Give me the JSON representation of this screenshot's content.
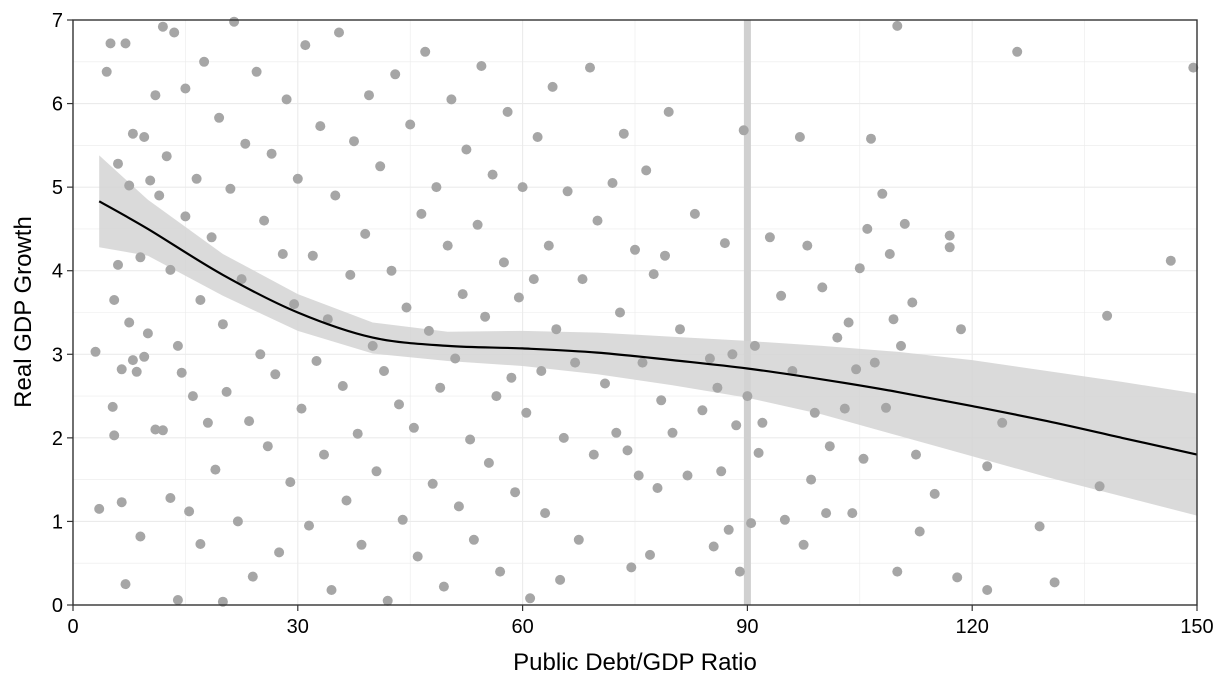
{
  "chart_data": {
    "type": "scatter",
    "title": "",
    "xlabel": "Public Debt/GDP Ratio",
    "ylabel": "Real GDP Growth",
    "xlim": [
      0,
      150
    ],
    "ylim": [
      0,
      7
    ],
    "xticks": [
      0,
      30,
      60,
      90,
      120,
      150
    ],
    "yticks": [
      0,
      1,
      2,
      3,
      4,
      5,
      6,
      7
    ],
    "grid": true,
    "reference_line_x": 90,
    "colors": {
      "points": "#a6a6a6",
      "smooth_line": "#000000",
      "confidence_band": "#d4d4d4",
      "reference_line": "#d0d0d0",
      "grid": "#ebebeb",
      "panel_border": "#333333"
    },
    "smooth": {
      "x": [
        3.5,
        10,
        20,
        30,
        40,
        50,
        60,
        70,
        80,
        90,
        100,
        110,
        120,
        130,
        140,
        150
      ],
      "y": [
        4.83,
        4.5,
        3.95,
        3.5,
        3.2,
        3.1,
        3.07,
        3.02,
        2.93,
        2.83,
        2.7,
        2.55,
        2.38,
        2.2,
        2.0,
        1.8
      ],
      "lower": [
        4.28,
        4.18,
        3.7,
        3.28,
        3.01,
        2.92,
        2.86,
        2.76,
        2.63,
        2.48,
        2.28,
        2.03,
        1.78,
        1.53,
        1.3,
        1.07
      ],
      "upper": [
        5.38,
        4.85,
        4.2,
        3.72,
        3.38,
        3.27,
        3.28,
        3.26,
        3.21,
        3.16,
        3.1,
        3.03,
        2.93,
        2.8,
        2.67,
        2.53
      ]
    },
    "points": [
      {
        "x": 3.0,
        "y": 3.03
      },
      {
        "x": 3.5,
        "y": 1.15
      },
      {
        "x": 4.5,
        "y": 6.38
      },
      {
        "x": 5.0,
        "y": 6.72
      },
      {
        "x": 5.3,
        "y": 2.37
      },
      {
        "x": 5.5,
        "y": 3.65
      },
      {
        "x": 5.5,
        "y": 2.03
      },
      {
        "x": 6.0,
        "y": 5.28
      },
      {
        "x": 6.0,
        "y": 4.07
      },
      {
        "x": 6.5,
        "y": 2.82
      },
      {
        "x": 6.5,
        "y": 1.23
      },
      {
        "x": 7.0,
        "y": 0.25
      },
      {
        "x": 7.0,
        "y": 6.72
      },
      {
        "x": 7.5,
        "y": 5.02
      },
      {
        "x": 7.5,
        "y": 3.38
      },
      {
        "x": 8.0,
        "y": 5.64
      },
      {
        "x": 8.0,
        "y": 2.93
      },
      {
        "x": 8.5,
        "y": 2.79
      },
      {
        "x": 9.0,
        "y": 0.82
      },
      {
        "x": 9.0,
        "y": 4.16
      },
      {
        "x": 9.5,
        "y": 5.6
      },
      {
        "x": 9.5,
        "y": 2.97
      },
      {
        "x": 10.0,
        "y": 3.25
      },
      {
        "x": 10.3,
        "y": 5.08
      },
      {
        "x": 11.0,
        "y": 6.1
      },
      {
        "x": 11.0,
        "y": 2.1
      },
      {
        "x": 11.5,
        "y": 4.9
      },
      {
        "x": 12.0,
        "y": 6.92
      },
      {
        "x": 12.0,
        "y": 2.09
      },
      {
        "x": 12.5,
        "y": 5.37
      },
      {
        "x": 13.0,
        "y": 4.01
      },
      {
        "x": 13.0,
        "y": 1.28
      },
      {
        "x": 13.5,
        "y": 6.85
      },
      {
        "x": 14.0,
        "y": 3.1
      },
      {
        "x": 14.0,
        "y": 0.06
      },
      {
        "x": 14.5,
        "y": 2.78
      },
      {
        "x": 15.0,
        "y": 6.18
      },
      {
        "x": 15.0,
        "y": 4.65
      },
      {
        "x": 15.5,
        "y": 1.12
      },
      {
        "x": 16.0,
        "y": 2.5
      },
      {
        "x": 16.5,
        "y": 5.1
      },
      {
        "x": 17.0,
        "y": 0.73
      },
      {
        "x": 17.0,
        "y": 3.65
      },
      {
        "x": 17.5,
        "y": 6.5
      },
      {
        "x": 18.0,
        "y": 2.18
      },
      {
        "x": 18.5,
        "y": 4.4
      },
      {
        "x": 19.0,
        "y": 1.62
      },
      {
        "x": 19.5,
        "y": 5.83
      },
      {
        "x": 20.0,
        "y": 3.36
      },
      {
        "x": 20.0,
        "y": 0.04
      },
      {
        "x": 20.5,
        "y": 2.55
      },
      {
        "x": 21.0,
        "y": 4.98
      },
      {
        "x": 21.5,
        "y": 6.98
      },
      {
        "x": 22.0,
        "y": 1.0
      },
      {
        "x": 22.5,
        "y": 3.9
      },
      {
        "x": 23.0,
        "y": 5.52
      },
      {
        "x": 23.5,
        "y": 2.2
      },
      {
        "x": 24.0,
        "y": 0.34
      },
      {
        "x": 24.5,
        "y": 6.38
      },
      {
        "x": 25.0,
        "y": 3.0
      },
      {
        "x": 25.5,
        "y": 4.6
      },
      {
        "x": 26.0,
        "y": 1.9
      },
      {
        "x": 26.5,
        "y": 5.4
      },
      {
        "x": 27.0,
        "y": 2.76
      },
      {
        "x": 27.5,
        "y": 0.63
      },
      {
        "x": 28.0,
        "y": 4.2
      },
      {
        "x": 28.5,
        "y": 6.05
      },
      {
        "x": 29.0,
        "y": 1.47
      },
      {
        "x": 29.5,
        "y": 3.6
      },
      {
        "x": 30.0,
        "y": 5.1
      },
      {
        "x": 30.5,
        "y": 2.35
      },
      {
        "x": 31.0,
        "y": 6.7
      },
      {
        "x": 31.5,
        "y": 0.95
      },
      {
        "x": 32.0,
        "y": 4.18
      },
      {
        "x": 32.5,
        "y": 2.92
      },
      {
        "x": 33.0,
        "y": 5.73
      },
      {
        "x": 33.5,
        "y": 1.8
      },
      {
        "x": 34.0,
        "y": 3.42
      },
      {
        "x": 34.5,
        "y": 0.18
      },
      {
        "x": 35.0,
        "y": 4.9
      },
      {
        "x": 35.5,
        "y": 6.85
      },
      {
        "x": 36.0,
        "y": 2.62
      },
      {
        "x": 36.5,
        "y": 1.25
      },
      {
        "x": 37.0,
        "y": 3.95
      },
      {
        "x": 37.5,
        "y": 5.55
      },
      {
        "x": 38.0,
        "y": 2.05
      },
      {
        "x": 38.5,
        "y": 0.72
      },
      {
        "x": 39.0,
        "y": 4.44
      },
      {
        "x": 39.5,
        "y": 6.1
      },
      {
        "x": 40.0,
        "y": 3.1
      },
      {
        "x": 40.5,
        "y": 1.6
      },
      {
        "x": 41.0,
        "y": 5.25
      },
      {
        "x": 41.5,
        "y": 2.8
      },
      {
        "x": 42.0,
        "y": 0.05
      },
      {
        "x": 42.5,
        "y": 4.0
      },
      {
        "x": 43.0,
        "y": 6.35
      },
      {
        "x": 43.5,
        "y": 2.4
      },
      {
        "x": 44.0,
        "y": 1.02
      },
      {
        "x": 44.5,
        "y": 3.56
      },
      {
        "x": 45.0,
        "y": 5.75
      },
      {
        "x": 45.5,
        "y": 2.12
      },
      {
        "x": 46.0,
        "y": 0.58
      },
      {
        "x": 46.5,
        "y": 4.68
      },
      {
        "x": 47.0,
        "y": 6.62
      },
      {
        "x": 47.5,
        "y": 3.28
      },
      {
        "x": 48.0,
        "y": 1.45
      },
      {
        "x": 48.5,
        "y": 5.0
      },
      {
        "x": 49.0,
        "y": 2.6
      },
      {
        "x": 49.5,
        "y": 0.22
      },
      {
        "x": 50.0,
        "y": 4.3
      },
      {
        "x": 50.5,
        "y": 6.05
      },
      {
        "x": 51.0,
        "y": 2.95
      },
      {
        "x": 51.5,
        "y": 1.18
      },
      {
        "x": 52.0,
        "y": 3.72
      },
      {
        "x": 52.5,
        "y": 5.45
      },
      {
        "x": 53.0,
        "y": 1.98
      },
      {
        "x": 53.5,
        "y": 0.78
      },
      {
        "x": 54.0,
        "y": 4.55
      },
      {
        "x": 54.5,
        "y": 6.45
      },
      {
        "x": 55.0,
        "y": 3.45
      },
      {
        "x": 55.5,
        "y": 1.7
      },
      {
        "x": 56.0,
        "y": 5.15
      },
      {
        "x": 56.5,
        "y": 2.5
      },
      {
        "x": 57.0,
        "y": 0.4
      },
      {
        "x": 57.5,
        "y": 4.1
      },
      {
        "x": 58.0,
        "y": 5.9
      },
      {
        "x": 58.5,
        "y": 2.72
      },
      {
        "x": 59.0,
        "y": 1.35
      },
      {
        "x": 59.5,
        "y": 3.68
      },
      {
        "x": 60.0,
        "y": 5.0
      },
      {
        "x": 60.5,
        "y": 2.3
      },
      {
        "x": 61.0,
        "y": 0.08
      },
      {
        "x": 61.5,
        "y": 3.9
      },
      {
        "x": 62.0,
        "y": 5.6
      },
      {
        "x": 62.5,
        "y": 2.8
      },
      {
        "x": 63.0,
        "y": 1.1
      },
      {
        "x": 63.5,
        "y": 4.3
      },
      {
        "x": 64.0,
        "y": 6.2
      },
      {
        "x": 64.5,
        "y": 3.3
      },
      {
        "x": 65.0,
        "y": 0.3
      },
      {
        "x": 65.5,
        "y": 2.0
      },
      {
        "x": 66.0,
        "y": 4.95
      },
      {
        "x": 67.0,
        "y": 2.9
      },
      {
        "x": 67.5,
        "y": 0.78
      },
      {
        "x": 68.0,
        "y": 3.9
      },
      {
        "x": 69.0,
        "y": 6.43
      },
      {
        "x": 69.5,
        "y": 1.8
      },
      {
        "x": 70.0,
        "y": 4.6
      },
      {
        "x": 71.0,
        "y": 2.65
      },
      {
        "x": 72.0,
        "y": 5.05
      },
      {
        "x": 72.5,
        "y": 2.06
      },
      {
        "x": 73.0,
        "y": 3.5
      },
      {
        "x": 73.5,
        "y": 5.64
      },
      {
        "x": 74.0,
        "y": 1.85
      },
      {
        "x": 74.5,
        "y": 0.45
      },
      {
        "x": 75.0,
        "y": 4.25
      },
      {
        "x": 75.5,
        "y": 1.55
      },
      {
        "x": 76.0,
        "y": 2.9
      },
      {
        "x": 76.5,
        "y": 5.2
      },
      {
        "x": 77.0,
        "y": 0.6
      },
      {
        "x": 77.5,
        "y": 3.96
      },
      {
        "x": 78.0,
        "y": 1.4
      },
      {
        "x": 78.5,
        "y": 2.45
      },
      {
        "x": 79.0,
        "y": 4.18
      },
      {
        "x": 79.5,
        "y": 5.9
      },
      {
        "x": 80.0,
        "y": 2.06
      },
      {
        "x": 81.0,
        "y": 3.3
      },
      {
        "x": 82.0,
        "y": 1.55
      },
      {
        "x": 83.0,
        "y": 4.68
      },
      {
        "x": 84.0,
        "y": 2.33
      },
      {
        "x": 85.0,
        "y": 2.95
      },
      {
        "x": 85.5,
        "y": 0.7
      },
      {
        "x": 86.0,
        "y": 2.6
      },
      {
        "x": 86.5,
        "y": 1.6
      },
      {
        "x": 87.0,
        "y": 4.33
      },
      {
        "x": 87.5,
        "y": 0.9
      },
      {
        "x": 88.0,
        "y": 3.0
      },
      {
        "x": 88.5,
        "y": 2.15
      },
      {
        "x": 89.0,
        "y": 0.4
      },
      {
        "x": 89.5,
        "y": 5.68
      },
      {
        "x": 90.0,
        "y": 2.5
      },
      {
        "x": 90.5,
        "y": 0.98
      },
      {
        "x": 91.0,
        "y": 3.1
      },
      {
        "x": 91.5,
        "y": 1.82
      },
      {
        "x": 92.0,
        "y": 2.18
      },
      {
        "x": 93.0,
        "y": 4.4
      },
      {
        "x": 94.5,
        "y": 3.7
      },
      {
        "x": 95.0,
        "y": 1.02
      },
      {
        "x": 96.0,
        "y": 2.8
      },
      {
        "x": 97.0,
        "y": 5.6
      },
      {
        "x": 97.5,
        "y": 0.72
      },
      {
        "x": 98.0,
        "y": 4.3
      },
      {
        "x": 98.5,
        "y": 1.5
      },
      {
        "x": 99.0,
        "y": 2.3
      },
      {
        "x": 100.0,
        "y": 3.8
      },
      {
        "x": 100.5,
        "y": 1.1
      },
      {
        "x": 101.0,
        "y": 1.9
      },
      {
        "x": 102.0,
        "y": 3.2
      },
      {
        "x": 103.0,
        "y": 2.35
      },
      {
        "x": 103.5,
        "y": 3.38
      },
      {
        "x": 104.0,
        "y": 1.1
      },
      {
        "x": 104.5,
        "y": 2.82
      },
      {
        "x": 105.0,
        "y": 4.03
      },
      {
        "x": 105.5,
        "y": 1.75
      },
      {
        "x": 106.0,
        "y": 4.5
      },
      {
        "x": 106.5,
        "y": 5.58
      },
      {
        "x": 107.0,
        "y": 2.9
      },
      {
        "x": 108.0,
        "y": 4.92
      },
      {
        "x": 108.5,
        "y": 2.36
      },
      {
        "x": 109.0,
        "y": 4.2
      },
      {
        "x": 109.5,
        "y": 3.42
      },
      {
        "x": 110.0,
        "y": 6.93
      },
      {
        "x": 110.0,
        "y": 0.4
      },
      {
        "x": 110.5,
        "y": 3.1
      },
      {
        "x": 111.0,
        "y": 4.56
      },
      {
        "x": 112.0,
        "y": 3.62
      },
      {
        "x": 112.5,
        "y": 1.8
      },
      {
        "x": 113.0,
        "y": 0.88
      },
      {
        "x": 115.0,
        "y": 1.33
      },
      {
        "x": 117.0,
        "y": 4.42
      },
      {
        "x": 117.0,
        "y": 4.28
      },
      {
        "x": 118.0,
        "y": 0.33
      },
      {
        "x": 118.5,
        "y": 3.3
      },
      {
        "x": 122.0,
        "y": 1.66
      },
      {
        "x": 122.0,
        "y": 0.18
      },
      {
        "x": 124.0,
        "y": 2.18
      },
      {
        "x": 126.0,
        "y": 6.62
      },
      {
        "x": 129.0,
        "y": 0.94
      },
      {
        "x": 131.0,
        "y": 0.27
      },
      {
        "x": 137.0,
        "y": 1.42
      },
      {
        "x": 138.0,
        "y": 3.46
      },
      {
        "x": 146.5,
        "y": 4.12
      },
      {
        "x": 149.5,
        "y": 6.43
      }
    ]
  }
}
